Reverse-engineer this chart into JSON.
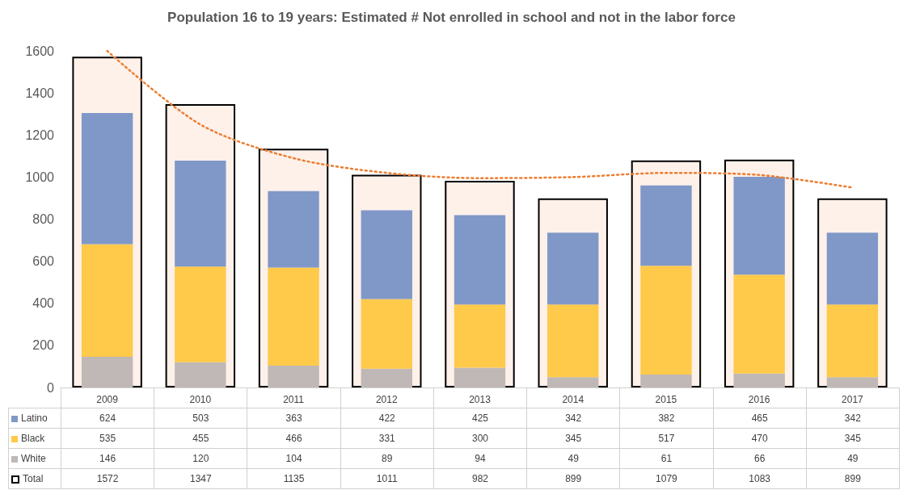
{
  "chart_data": {
    "type": "bar",
    "title": "Population 16 to 19 years: Estimated # Not enrolled in school and not in the labor force",
    "categories": [
      "2009",
      "2010",
      "2011",
      "2012",
      "2013",
      "2014",
      "2015",
      "2016",
      "2017"
    ],
    "series": [
      {
        "name": "Total",
        "color": "#fdf1ea",
        "values": [
          1572,
          1347,
          1135,
          1011,
          982,
          899,
          1079,
          1083,
          899
        ],
        "value_labels": [
          "1572",
          "1347",
          "1135",
          "1011",
          "982",
          "899",
          "1079",
          "1083",
          "899"
        ]
      },
      {
        "name": "White",
        "color": "#bfb8b6",
        "base": [
          0,
          0,
          0,
          0,
          0,
          0,
          0,
          0,
          0
        ],
        "values": [
          146,
          120,
          104,
          89,
          94,
          49,
          61,
          66,
          49
        ],
        "value_labels": [
          "146",
          "120",
          "104",
          "89",
          "94",
          "49",
          "61",
          "66",
          "49"
        ]
      },
      {
        "name": "Black",
        "color": "#ffc94a",
        "base": [
          146,
          120,
          104,
          89,
          94,
          49,
          61,
          66,
          49
        ],
        "values": [
          535,
          455,
          466,
          331,
          300,
          345,
          517,
          470,
          345
        ],
        "value_labels": [
          "535",
          "455",
          "466",
          "331",
          "300",
          "345",
          "517",
          "470",
          "345"
        ]
      },
      {
        "name": "Latino",
        "color": "#8098c8",
        "base": [
          681,
          575,
          570,
          420,
          394,
          394,
          578,
          536,
          394
        ],
        "values": [
          624,
          503,
          363,
          422,
          425,
          342,
          382,
          465,
          342
        ],
        "value_labels": [
          "624",
          "503",
          "363",
          "422",
          "425",
          "342",
          "382",
          "465",
          "342"
        ]
      },
      {
        "type": "line",
        "color": "#ed7d31",
        "line_style": "dotted",
        "marker": "none",
        "values": [
          1600,
          1250,
          1090,
          1020,
          995,
          1000,
          1020,
          1010,
          950
        ]
      }
    ],
    "ylim": [
      0,
      1600
    ],
    "yticks": [
      0,
      200,
      400,
      600,
      800,
      1000,
      1200,
      1400,
      1600
    ],
    "grid": false,
    "legend": "bottom"
  }
}
